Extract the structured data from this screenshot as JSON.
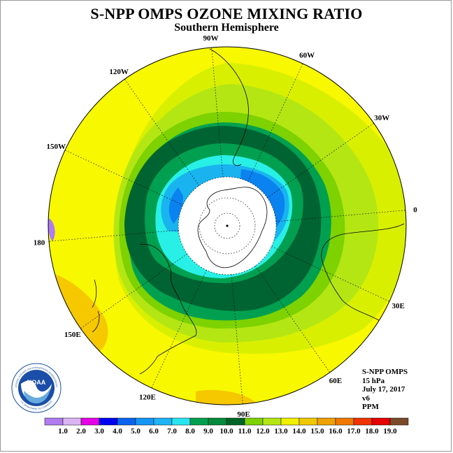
{
  "title": "S-NPP OMPS OZONE MIXING RATIO",
  "subtitle": "Southern Hemisphere",
  "meridians": [
    {
      "label": "0",
      "lon": 0
    },
    {
      "label": "30E",
      "lon": 30
    },
    {
      "label": "60E",
      "lon": 60
    },
    {
      "label": "90E",
      "lon": 90
    },
    {
      "label": "120E",
      "lon": 120
    },
    {
      "label": "150E",
      "lon": 150
    },
    {
      "label": "180",
      "lon": 180
    },
    {
      "label": "150W",
      "lon": -150
    },
    {
      "label": "120W",
      "lon": -120
    },
    {
      "label": "90W",
      "lon": -90
    },
    {
      "label": "60W",
      "lon": -60
    },
    {
      "label": "30W",
      "lon": -30
    }
  ],
  "info": {
    "line1": "S-NPP OMPS",
    "line2": "15 hPa",
    "line3": "July 17, 2017",
    "line4": "v6",
    "line5": "PPM"
  },
  "logo": {
    "text": "NOAA",
    "ring_text": "NATIONAL OCEANIC AND ATMOSPHERIC ADMINISTRATION",
    "ring_text_bottom": "U.S. DEPARTMENT OF COMMERCE"
  },
  "colorbar": {
    "labels": [
      "1.0",
      "2.0",
      "3.0",
      "4.0",
      "5.0",
      "6.0",
      "7.0",
      "8.0",
      "9.0",
      "10.0",
      "11.0",
      "12.0",
      "13.0",
      "14.0",
      "15.0",
      "16.0",
      "17.0",
      "18.0",
      "19.0"
    ],
    "colors": [
      "#b07cf0",
      "#d9b6f2",
      "#e600e6",
      "#0000f0",
      "#0a64f0",
      "#1496f5",
      "#1eb4f5",
      "#28e6f0",
      "#00a050",
      "#008c3c",
      "#006428",
      "#7dd200",
      "#b4e614",
      "#f0f000",
      "#f0c800",
      "#f0a000",
      "#f07800",
      "#f03200",
      "#e60000",
      "#7b4a2a"
    ]
  },
  "palette": {
    "yellow": "#f8f800",
    "lightyellowgreen": "#d8f000",
    "lime": "#a8dc14",
    "lightgreen": "#78c828",
    "green": "#28a050",
    "darkgreen": "#006432",
    "cyan": "#28f0e6",
    "lightblue": "#19b4f0",
    "blue": "#0a82f0",
    "orange": "#f5c800",
    "purple": "#b07cf0"
  }
}
